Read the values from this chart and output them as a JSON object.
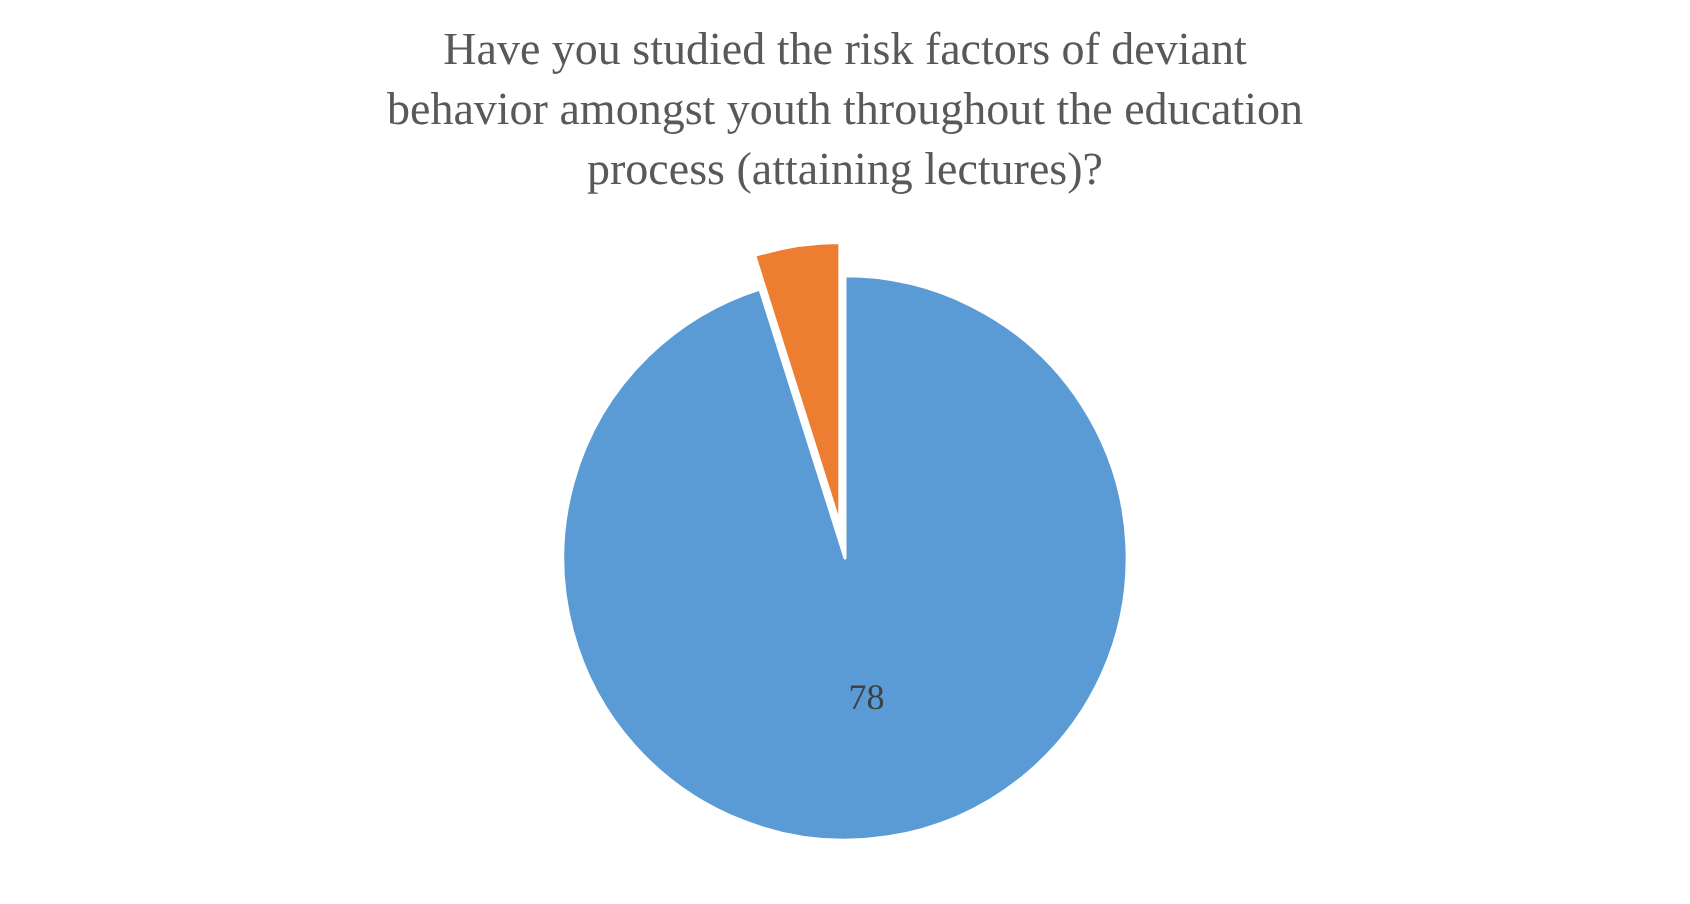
{
  "chart_data": {
    "type": "pie",
    "title": "Have you studied the risk factors of deviant behavior amongst youth throughout the education process (attaining lectures)?",
    "categories": [
      null,
      null
    ],
    "values": [
      78,
      4
    ],
    "colors": [
      "#5b9bd5",
      "#ed7d31"
    ],
    "value_labels": [
      "78",
      null
    ],
    "legend": false
  }
}
